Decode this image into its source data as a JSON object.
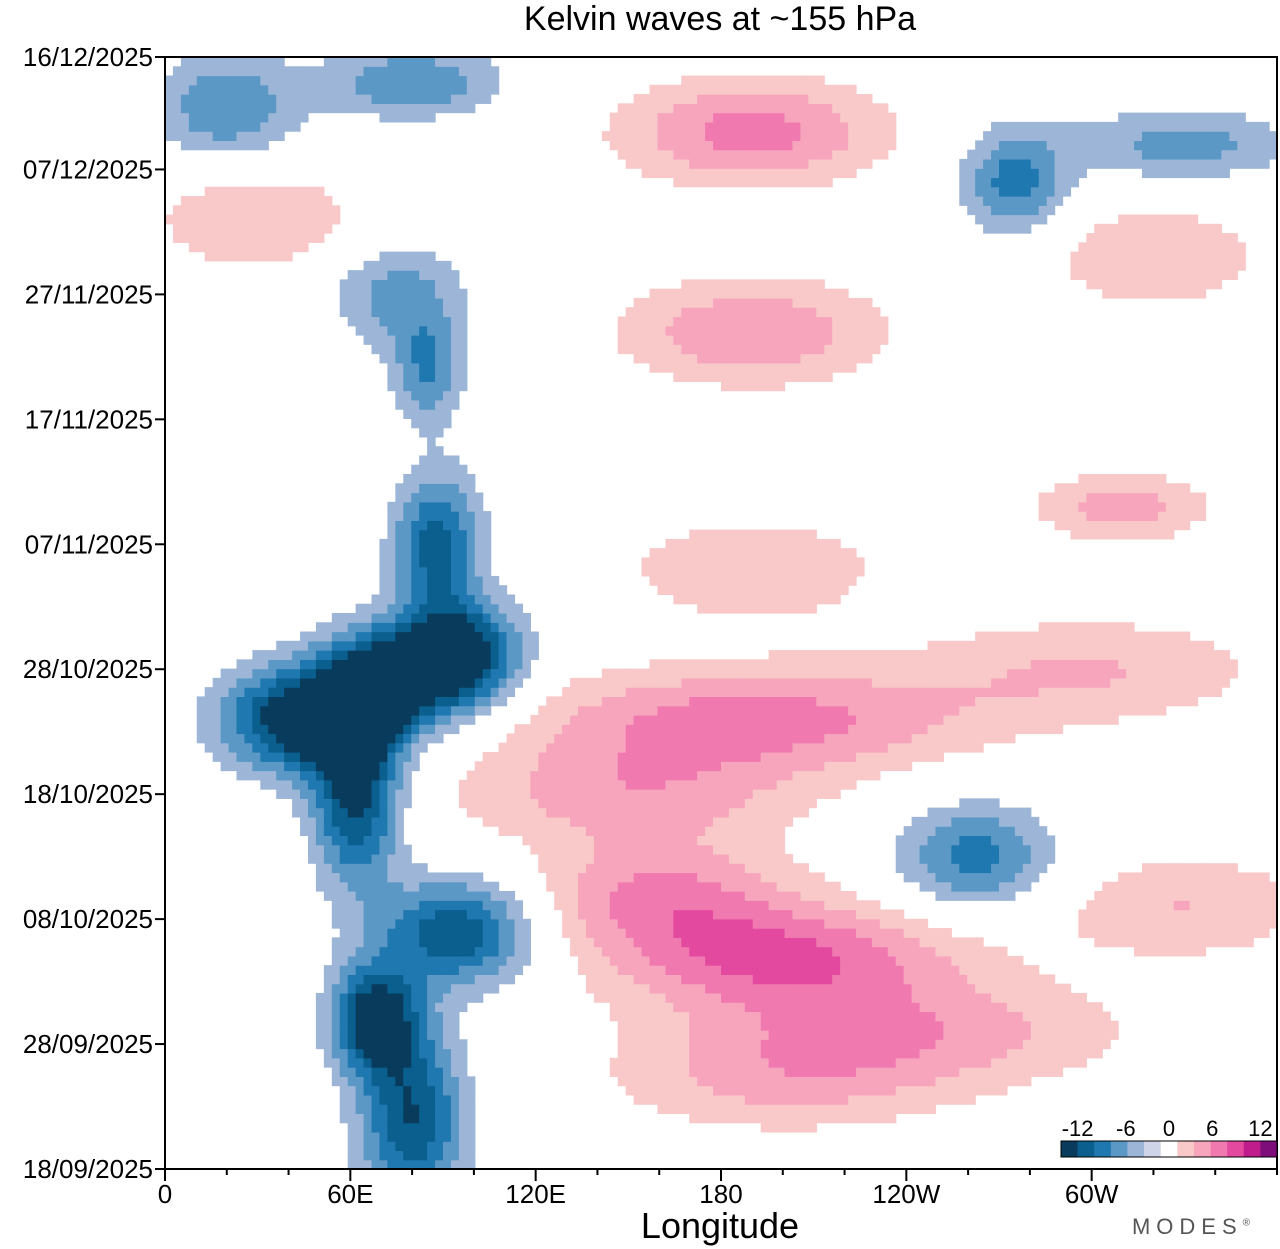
{
  "chart_data": {
    "type": "heatmap",
    "title": "Kelvin waves at ~155 hPa",
    "xlabel": "Longitude",
    "ylabel": "",
    "x_ticks": [
      {
        "lon": 0,
        "label": "0"
      },
      {
        "lon": 60,
        "label": "60E"
      },
      {
        "lon": 120,
        "label": "120E"
      },
      {
        "lon": 180,
        "label": "180"
      },
      {
        "lon": 240,
        "label": "120W"
      },
      {
        "lon": 300,
        "label": "60W"
      }
    ],
    "xlim": [
      0,
      360
    ],
    "y_ticks": [
      {
        "day": 0,
        "label": "18/09/2025"
      },
      {
        "day": 10,
        "label": "28/09/2025"
      },
      {
        "day": 20,
        "label": "08/10/2025"
      },
      {
        "day": 30,
        "label": "18/10/2025"
      },
      {
        "day": 40,
        "label": "28/10/2025"
      },
      {
        "day": 50,
        "label": "07/11/2025"
      },
      {
        "day": 60,
        "label": "17/11/2025"
      },
      {
        "day": 70,
        "label": "27/11/2025"
      },
      {
        "day": 80,
        "label": "07/12/2025"
      },
      {
        "day": 89,
        "label": "16/12/2025"
      }
    ],
    "ylim": [
      0,
      89
    ],
    "colorbar": {
      "labels": [
        "-12",
        "-6",
        "0",
        "6",
        "12"
      ],
      "levels": [
        -12,
        -10,
        -8,
        -6,
        -4,
        -2,
        0,
        2,
        4,
        6,
        8,
        10,
        12
      ],
      "colors": [
        "#083b5c",
        "#0b5f8e",
        "#1f78b0",
        "#5b98c6",
        "#9db6d8",
        "#d0d4e8",
        "#ffffff",
        "#f9c8c8",
        "#f7a5bd",
        "#f07ab0",
        "#e3499f",
        "#c01c8c",
        "#7d0e7a"
      ]
    },
    "anomalies": [
      {
        "lon": 80,
        "day": 4,
        "amp": -10,
        "slon": 12,
        "sday": 5
      },
      {
        "lon": 68,
        "day": 12,
        "amp": -12,
        "slon": 10,
        "sday": 3
      },
      {
        "lon": 95,
        "day": 19,
        "amp": -10,
        "slon": 18,
        "sday": 3
      },
      {
        "lon": 62,
        "day": 30,
        "amp": -11,
        "slon": 10,
        "sday": 5
      },
      {
        "lon": 45,
        "day": 36,
        "amp": -13,
        "slon": 18,
        "sday": 3
      },
      {
        "lon": 70,
        "day": 39,
        "amp": -11,
        "slon": 14,
        "sday": 3
      },
      {
        "lon": 95,
        "day": 41,
        "amp": -13,
        "slon": 14,
        "sday": 3
      },
      {
        "lon": 88,
        "day": 50,
        "amp": -9,
        "slon": 10,
        "sday": 4
      },
      {
        "lon": 85,
        "day": 64,
        "amp": -6,
        "slon": 8,
        "sday": 3
      },
      {
        "lon": 75,
        "day": 70,
        "amp": -5,
        "slon": 15,
        "sday": 3
      },
      {
        "lon": 20,
        "day": 85,
        "amp": -6,
        "slon": 16,
        "sday": 3
      },
      {
        "lon": 80,
        "day": 87,
        "amp": -6,
        "slon": 20,
        "sday": 2
      },
      {
        "lon": 275,
        "day": 79,
        "amp": -7,
        "slon": 12,
        "sday": 3
      },
      {
        "lon": 330,
        "day": 82,
        "amp": -5,
        "slon": 25,
        "sday": 2
      },
      {
        "lon": 262,
        "day": 25,
        "amp": -7,
        "slon": 18,
        "sday": 3
      },
      {
        "lon": 190,
        "day": 36,
        "amp": 7,
        "slon": 50,
        "sday": 3
      },
      {
        "lon": 150,
        "day": 30,
        "amp": 5,
        "slon": 40,
        "sday": 3
      },
      {
        "lon": 200,
        "day": 17,
        "amp": 8,
        "slon": 40,
        "sday": 3
      },
      {
        "lon": 160,
        "day": 22,
        "amp": 6,
        "slon": 30,
        "sday": 3
      },
      {
        "lon": 240,
        "day": 11,
        "amp": 5,
        "slon": 50,
        "sday": 3
      },
      {
        "lon": 200,
        "day": 7,
        "amp": 4,
        "slon": 40,
        "sday": 3
      },
      {
        "lon": 190,
        "day": 48,
        "amp": 4,
        "slon": 30,
        "sday": 3
      },
      {
        "lon": 190,
        "day": 67,
        "amp": 6,
        "slon": 30,
        "sday": 3
      },
      {
        "lon": 310,
        "day": 53,
        "amp": 5,
        "slon": 20,
        "sday": 2
      },
      {
        "lon": 300,
        "day": 40,
        "amp": 4,
        "slon": 40,
        "sday": 3
      },
      {
        "lon": 190,
        "day": 83,
        "amp": 7,
        "slon": 30,
        "sday": 3
      },
      {
        "lon": 30,
        "day": 76,
        "amp": 4,
        "slon": 25,
        "sday": 3
      },
      {
        "lon": 320,
        "day": 73,
        "amp": 4,
        "slon": 25,
        "sday": 3
      },
      {
        "lon": 330,
        "day": 21,
        "amp": 4,
        "slon": 30,
        "sday": 3
      }
    ]
  },
  "branding": {
    "text": "MODES",
    "mark": "®"
  }
}
